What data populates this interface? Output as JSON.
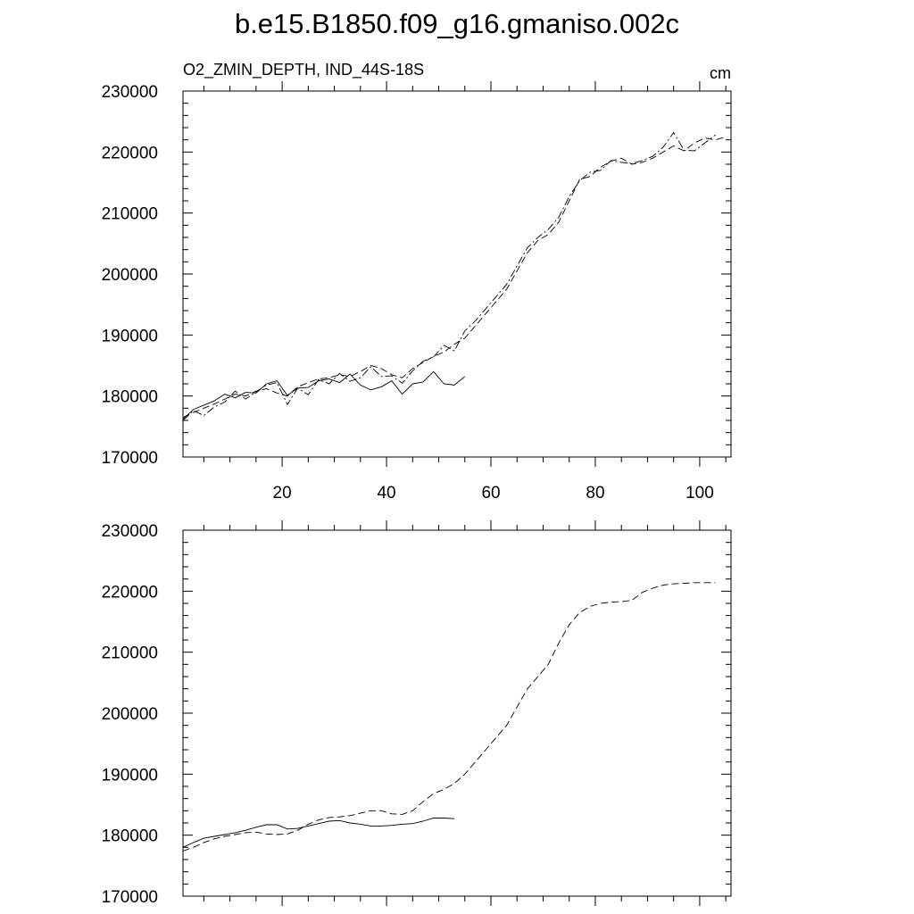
{
  "figure": {
    "title": "b.e15.B1850.f09_g16.gmaniso.002c"
  },
  "chart_data": [
    {
      "type": "line",
      "subtitle_left": "O2_ZMIN_DEPTH, IND_44S-18S",
      "subtitle_right": "cm",
      "xlim": [
        1,
        106
      ],
      "ylim": [
        170000,
        230000
      ],
      "x_ticks": [
        20,
        40,
        60,
        80,
        100
      ],
      "x_tick_labels": [
        "20",
        "40",
        "60",
        "80",
        "100"
      ],
      "y_ticks": [
        170000,
        180000,
        190000,
        200000,
        210000,
        220000,
        230000
      ],
      "y_tick_labels": [
        "170000",
        "180000",
        "190000",
        "200000",
        "210000",
        "220000",
        "230000"
      ],
      "series": [
        {
          "name": "solid",
          "style": "solid",
          "x": [
            1,
            3,
            5,
            7,
            9,
            11,
            13,
            15,
            17,
            19,
            21,
            23,
            25,
            27,
            29,
            31,
            33,
            35,
            37,
            39,
            41,
            43,
            45,
            47,
            49,
            51,
            53,
            55
          ],
          "y": [
            176200,
            177800,
            178500,
            179200,
            180300,
            179700,
            180600,
            180500,
            182000,
            182500,
            180100,
            181300,
            181400,
            182500,
            182800,
            182200,
            183600,
            181800,
            181000,
            181500,
            182500,
            180300,
            182000,
            182300,
            184000,
            182000,
            181800,
            183200
          ]
        },
        {
          "name": "dashed",
          "style": "dashed",
          "x": [
            1,
            3,
            5,
            7,
            9,
            11,
            13,
            15,
            17,
            19,
            21,
            23,
            25,
            27,
            29,
            31,
            33,
            35,
            37,
            39,
            41,
            43,
            45,
            47,
            49,
            51,
            53,
            55,
            57,
            59,
            61,
            63,
            65,
            67,
            69,
            71,
            73,
            75,
            77,
            79,
            81,
            83,
            85,
            87,
            89,
            91,
            93,
            95,
            97,
            99,
            101,
            103,
            105
          ],
          "y": [
            176500,
            177300,
            178000,
            178700,
            179500,
            180300,
            180000,
            180800,
            181200,
            180500,
            180000,
            181500,
            182200,
            182800,
            183000,
            183500,
            183200,
            184000,
            185000,
            184500,
            183500,
            183000,
            184500,
            185500,
            186500,
            187200,
            188500,
            189500,
            191500,
            193500,
            195500,
            197500,
            200500,
            203500,
            205500,
            206500,
            208500,
            212000,
            215500,
            216000,
            217500,
            218500,
            219000,
            218000,
            218300,
            219000,
            220000,
            221000,
            220200,
            221500,
            222300,
            222000,
            222500
          ]
        },
        {
          "name": "dash-dot",
          "style": "dashdot",
          "x": [
            1,
            3,
            5,
            7,
            9,
            11,
            13,
            15,
            17,
            19,
            21,
            23,
            25,
            27,
            29,
            31,
            33,
            35,
            37,
            39,
            41,
            43,
            45,
            47,
            49,
            51,
            53,
            55,
            57,
            59,
            61,
            63,
            65,
            67,
            69,
            71,
            73,
            75,
            77,
            79,
            81,
            83,
            85,
            87,
            89,
            91,
            93,
            95,
            97,
            99,
            101,
            103
          ],
          "y": [
            176000,
            177600,
            176800,
            178200,
            179000,
            180800,
            179500,
            180700,
            181800,
            182200,
            178600,
            181300,
            180200,
            182700,
            182000,
            183700,
            182400,
            183000,
            184800,
            183200,
            183300,
            182100,
            184100,
            185700,
            186400,
            188300,
            187400,
            190700,
            192300,
            194300,
            196300,
            198300,
            201300,
            204300,
            206000,
            207300,
            209300,
            212700,
            215300,
            216700,
            217000,
            218600,
            218300,
            218100,
            218600,
            219300,
            220800,
            223200,
            220300,
            220200,
            221500,
            222800
          ]
        }
      ]
    },
    {
      "type": "line",
      "xlim": [
        1,
        106
      ],
      "ylim": [
        170000,
        230000
      ],
      "x_ticks": [
        20,
        40,
        60,
        80,
        100
      ],
      "y_ticks": [
        170000,
        180000,
        190000,
        200000,
        210000,
        220000,
        230000
      ],
      "y_tick_labels": [
        "170000",
        "180000",
        "190000",
        "200000",
        "210000",
        "220000",
        "230000"
      ],
      "series": [
        {
          "name": "solid-smoothed",
          "style": "solid",
          "x": [
            1,
            3,
            5,
            7,
            9,
            11,
            13,
            15,
            17,
            19,
            21,
            23,
            25,
            27,
            29,
            31,
            33,
            35,
            37,
            39,
            41,
            43,
            45,
            47,
            49,
            51,
            53
          ],
          "y": [
            178000,
            178800,
            179500,
            179800,
            180100,
            180400,
            180800,
            181300,
            181700,
            181700,
            181000,
            181100,
            181500,
            181900,
            182300,
            182400,
            182000,
            181800,
            181500,
            181500,
            181600,
            181800,
            181900,
            182300,
            182800,
            182800,
            182700
          ]
        },
        {
          "name": "dashed-smoothed",
          "style": "dashed",
          "x": [
            1,
            3,
            5,
            7,
            9,
            11,
            13,
            15,
            17,
            19,
            21,
            23,
            25,
            27,
            29,
            31,
            33,
            35,
            37,
            39,
            41,
            43,
            45,
            47,
            49,
            51,
            53,
            55,
            57,
            59,
            61,
            63,
            65,
            67,
            69,
            71,
            73,
            75,
            77,
            79,
            81,
            83,
            85,
            87,
            89,
            91,
            93,
            95,
            97,
            99,
            101,
            103
          ],
          "y": [
            177400,
            178000,
            178800,
            179400,
            179800,
            180100,
            180400,
            180500,
            180200,
            180100,
            180200,
            180800,
            181800,
            182500,
            182900,
            183000,
            183200,
            183600,
            184000,
            184000,
            183500,
            183400,
            184000,
            185500,
            186800,
            187500,
            188500,
            190000,
            192000,
            194000,
            196000,
            198000,
            201000,
            204000,
            206000,
            208000,
            211500,
            214500,
            216500,
            217500,
            218000,
            218200,
            218300,
            218500,
            219800,
            220500,
            221000,
            221200,
            221300,
            221400,
            221400,
            221400
          ]
        }
      ]
    }
  ]
}
